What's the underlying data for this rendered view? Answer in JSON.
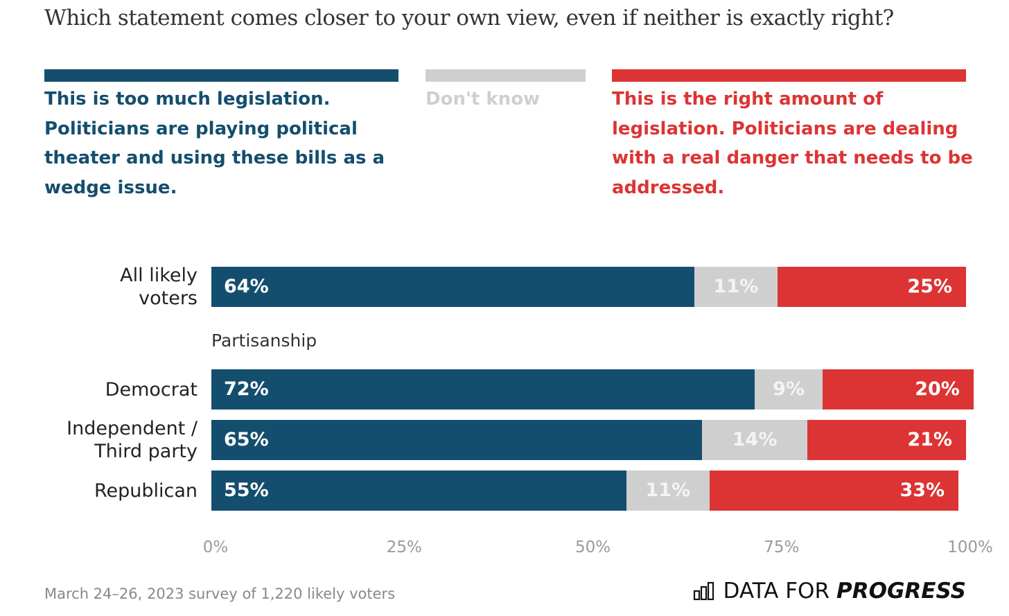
{
  "chart_data": {
    "type": "stacked-bar-horizontal",
    "title": "Which statement comes closer to your own view, even if neither is exactly right?",
    "categories": [
      "All likely voters",
      "Democrat",
      "Independent / Third party",
      "Republican"
    ],
    "group_label": "Partisanship",
    "series": [
      {
        "name": "This is too much legislation. Politicians are playing political theater and using these bills as a wedge issue.",
        "color": "#144e6e",
        "values": [
          64,
          72,
          65,
          55
        ],
        "value_labels": [
          "64%",
          "72%",
          "65%",
          "55%"
        ]
      },
      {
        "name": "Don't know",
        "color": "#d0cfd0",
        "values": [
          11,
          9,
          14,
          11
        ],
        "value_labels": [
          "11%",
          "9%",
          "14%",
          "11%"
        ]
      },
      {
        "name": "This is the right amount of legislation. Politicians are dealing with a real danger that needs to be addressed.",
        "color": "#dc3434",
        "values": [
          25,
          20,
          21,
          33
        ],
        "value_labels": [
          "25%",
          "20%",
          "21%",
          "33%"
        ]
      }
    ],
    "xlim": [
      0,
      100
    ],
    "xticks": [
      {
        "value": 0,
        "label": "0%"
      },
      {
        "value": 25,
        "label": "25%"
      },
      {
        "value": 50,
        "label": "50%"
      },
      {
        "value": 75,
        "label": "75%"
      },
      {
        "value": 100,
        "label": "100%"
      }
    ],
    "source": "March 24–26, 2023 survey of 1,220 likely voters",
    "brand": [
      "DATA FOR",
      "PROGRESS"
    ]
  }
}
